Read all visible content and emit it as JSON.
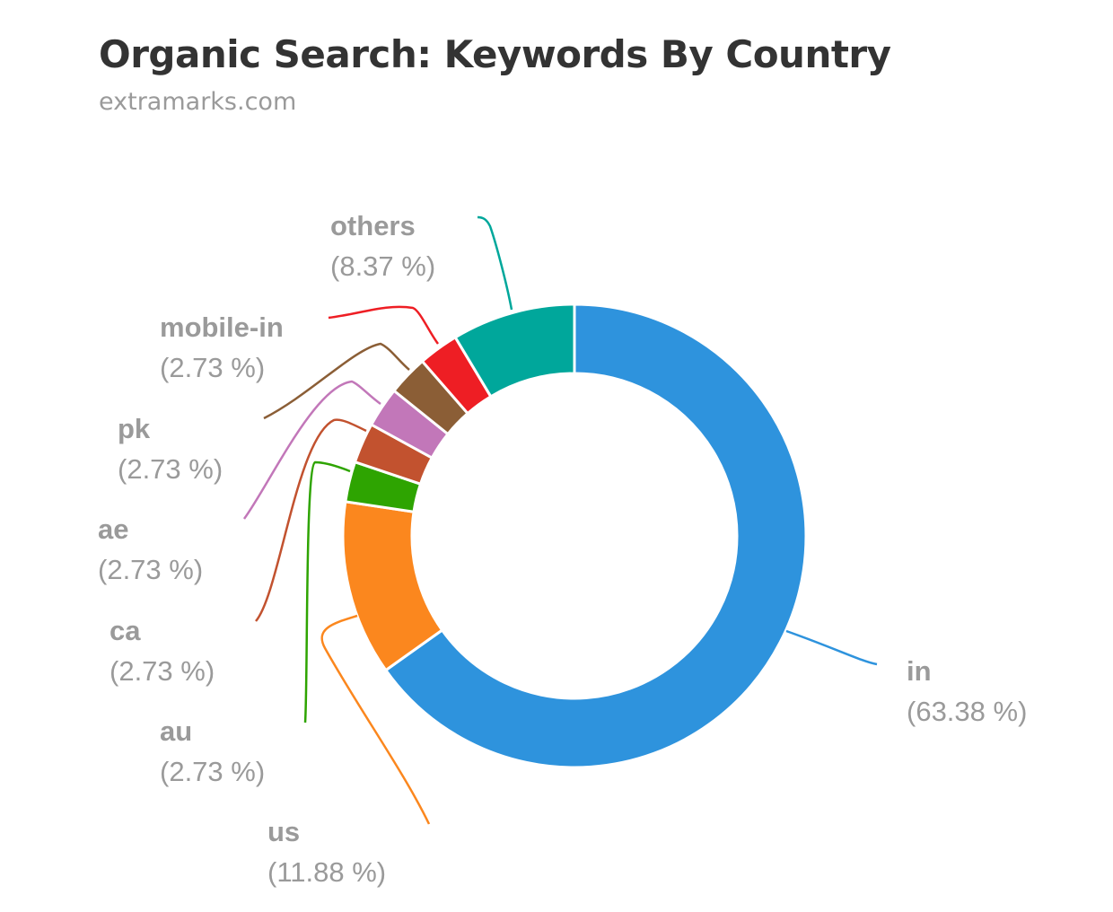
{
  "chart_data": {
    "type": "pie",
    "title": "Organic Search: Keywords By Country",
    "subtitle": "extramarks.com",
    "categories": [
      "in",
      "us",
      "au",
      "ca",
      "ae",
      "pk",
      "mobile-in",
      "others"
    ],
    "values": [
      63.38,
      11.88,
      2.73,
      2.73,
      2.73,
      2.73,
      2.73,
      8.37
    ],
    "value_labels": [
      "(63.38 %)",
      "(11.88 %)",
      "(2.73 %)",
      "(2.73 %)",
      "(2.73 %)",
      "(2.73 %)",
      "(2.73 %)",
      "(8.37 %)"
    ],
    "colors": [
      "#2e93dd",
      "#fb871e",
      "#2ea401",
      "#c2522f",
      "#c277b9",
      "#8b5e36",
      "#ee1e24",
      "#00a79b",
      "#8d288f"
    ],
    "legend": "none"
  }
}
